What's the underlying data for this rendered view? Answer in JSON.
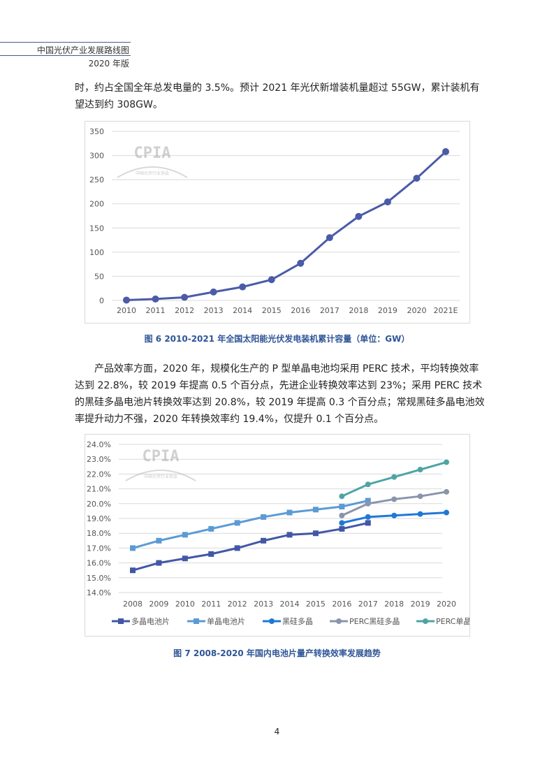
{
  "header": {
    "title": "中国光伏产业发展路线图",
    "edition": "2020 年版"
  },
  "paragraph1": "时，约占全国全年总发电量的 3.5%。预计 2021 年光伏新增装机量超过 55GW，累计装机有望达到约 308GW。",
  "paragraph2": "产品效率方面，2020 年，规模化生产的 P 型单晶电池均采用 PERC 技术，平均转换效率达到 22.8%，较 2019 年提高 0.5 个百分点，先进企业转换效率达到 23%；采用 PERC 技术的黑硅多晶电池片转换效率达到 20.8%，较 2019 年提高 0.3 个百分点；常规黑硅多晶电池效率提升动力不强，2020 年转换效率约 19.4%，仅提升 0.1 个百分点。",
  "watermark": {
    "logo": "CPIA",
    "name": "中国光伏行业协会"
  },
  "page_number": "4",
  "chart_data": [
    {
      "type": "line",
      "title": "",
      "caption": "图 6   2010-2021 年全国太阳能光伏发电装机累计容量（单位：GW）",
      "categories": [
        "2010",
        "2011",
        "2012",
        "2013",
        "2014",
        "2015",
        "2016",
        "2017",
        "2018",
        "2019",
        "2020",
        "2021E"
      ],
      "series": [
        {
          "values": [
            0.8,
            3,
            6.5,
            17.5,
            28,
            43,
            77,
            130,
            174,
            204,
            253,
            308
          ],
          "color": "#4a5ba8",
          "marker": "circle"
        }
      ],
      "ylim": [
        0,
        350
      ],
      "yticks": [
        "0",
        "50",
        "100",
        "150",
        "200",
        "250",
        "300",
        "350"
      ],
      "grid": true,
      "legend": "none"
    },
    {
      "type": "line",
      "title": "",
      "caption": "图 7   2008-2020 年国内电池片量产转换效率发展趋势",
      "categories": [
        "2008",
        "2009",
        "2010",
        "2011",
        "2012",
        "2013",
        "2014",
        "2015",
        "2016",
        "2017",
        "2018",
        "2019",
        "2020"
      ],
      "series": [
        {
          "name": "多晶电池片",
          "color": "#4257a6",
          "marker": "square",
          "values": [
            15.5,
            16.0,
            16.3,
            16.6,
            17.0,
            17.5,
            17.9,
            18.0,
            18.3,
            18.7,
            null,
            null,
            null
          ]
        },
        {
          "name": "单晶电池片",
          "color": "#5b9bd5",
          "marker": "square",
          "values": [
            17.0,
            17.5,
            17.9,
            18.3,
            18.7,
            19.1,
            19.4,
            19.6,
            19.8,
            20.2,
            null,
            null,
            null
          ]
        },
        {
          "name": "黑硅多晶",
          "color": "#1f78d8",
          "marker": "circle",
          "values": [
            null,
            null,
            null,
            null,
            null,
            null,
            null,
            null,
            18.7,
            19.1,
            19.2,
            19.3,
            19.4
          ]
        },
        {
          "name": "PERC黑硅多晶",
          "color": "#8a94ab",
          "marker": "circle",
          "values": [
            null,
            null,
            null,
            null,
            null,
            null,
            null,
            null,
            19.2,
            20.0,
            20.3,
            20.5,
            20.8
          ]
        },
        {
          "name": "PERC单晶",
          "color": "#4ea4a4",
          "marker": "circle",
          "values": [
            null,
            null,
            null,
            null,
            null,
            null,
            null,
            null,
            20.5,
            21.3,
            21.8,
            22.3,
            22.8
          ]
        }
      ],
      "ylim": [
        14,
        24
      ],
      "yticks": [
        "14.0%",
        "15.0%",
        "16.0%",
        "17.0%",
        "18.0%",
        "19.0%",
        "20.0%",
        "21.0%",
        "22.0%",
        "23.0%",
        "24.0%"
      ],
      "grid": true,
      "legend": "bottom"
    }
  ]
}
